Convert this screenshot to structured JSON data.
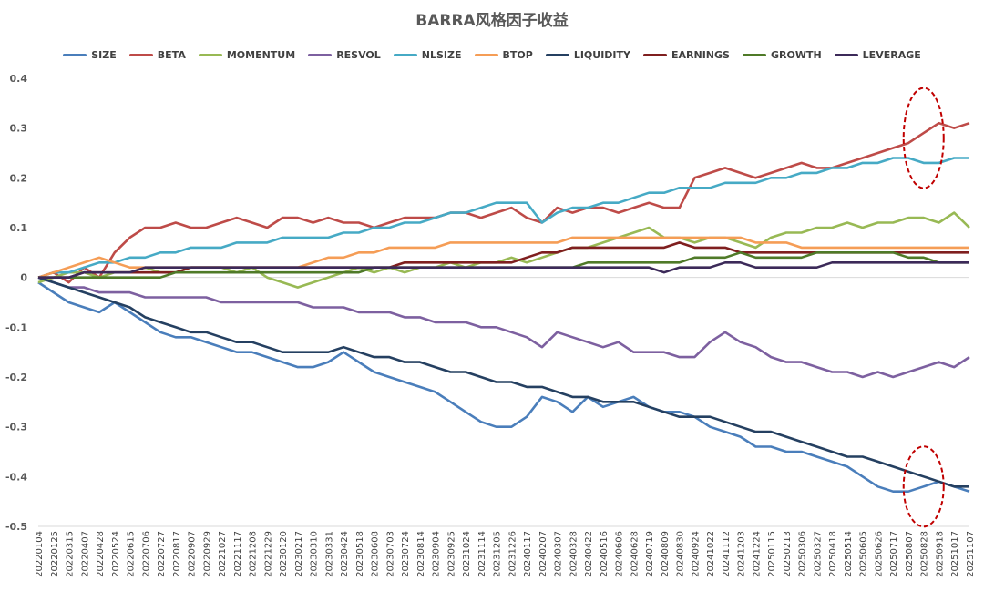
{
  "chart_data": {
    "type": "line",
    "title": "BARRA风格因子收益",
    "xlabel": "",
    "ylabel": "",
    "ylim": [
      -0.5,
      0.4
    ],
    "y_ticks": [
      "0.4",
      "0.3",
      "0.2",
      "0.1",
      "0",
      "-0.1",
      "-0.2",
      "-0.3",
      "-0.4",
      "-0.5"
    ],
    "legend_position": "top",
    "grid": false,
    "x": [
      "20220104",
      "20220125",
      "20220315",
      "20220407",
      "20220428",
      "20220524",
      "20220615",
      "20220706",
      "20220727",
      "20220817",
      "20220907",
      "20220929",
      "20221027",
      "20221117",
      "20221208",
      "20221229",
      "20230120",
      "20230217",
      "20230310",
      "20230331",
      "20230424",
      "20230518",
      "20230608",
      "20230703",
      "20230724",
      "20230814",
      "20230904",
      "20230925",
      "20231024",
      "20231114",
      "20231205",
      "20231226",
      "20240117",
      "20240207",
      "20240307",
      "20240328",
      "20240422",
      "20240516",
      "20240606",
      "20240628",
      "20240719",
      "20240809",
      "20240830",
      "20240924",
      "20241022",
      "20241112",
      "20241203",
      "20241224",
      "20250115",
      "20250213",
      "20250306",
      "20250327",
      "20250418",
      "20250514",
      "20250605",
      "20250626",
      "20250717",
      "20250807",
      "20250828",
      "20250918",
      "20251017",
      "20251107"
    ],
    "series": [
      {
        "name": "SIZE",
        "color": "#4a7ebb",
        "values": [
          -0.01,
          -0.03,
          -0.05,
          -0.06,
          -0.07,
          -0.05,
          -0.07,
          -0.09,
          -0.11,
          -0.12,
          -0.12,
          -0.13,
          -0.14,
          -0.15,
          -0.15,
          -0.16,
          -0.17,
          -0.18,
          -0.18,
          -0.17,
          -0.15,
          -0.17,
          -0.19,
          -0.2,
          -0.21,
          -0.22,
          -0.23,
          -0.25,
          -0.27,
          -0.29,
          -0.3,
          -0.3,
          -0.28,
          -0.24,
          -0.25,
          -0.27,
          -0.24,
          -0.26,
          -0.25,
          -0.24,
          -0.26,
          -0.27,
          -0.27,
          -0.28,
          -0.3,
          -0.31,
          -0.32,
          -0.34,
          -0.34,
          -0.35,
          -0.35,
          -0.36,
          -0.37,
          -0.38,
          -0.4,
          -0.42,
          -0.43,
          -0.43,
          -0.42,
          -0.41,
          -0.42,
          -0.43
        ]
      },
      {
        "name": "BETA",
        "color": "#be4b48",
        "values": [
          0.0,
          0.01,
          -0.01,
          0.02,
          0.0,
          0.05,
          0.08,
          0.1,
          0.1,
          0.11,
          0.1,
          0.1,
          0.11,
          0.12,
          0.11,
          0.1,
          0.12,
          0.12,
          0.11,
          0.12,
          0.11,
          0.11,
          0.1,
          0.11,
          0.12,
          0.12,
          0.12,
          0.13,
          0.13,
          0.12,
          0.13,
          0.14,
          0.12,
          0.11,
          0.14,
          0.13,
          0.14,
          0.14,
          0.13,
          0.14,
          0.15,
          0.14,
          0.14,
          0.2,
          0.21,
          0.22,
          0.21,
          0.2,
          0.21,
          0.22,
          0.23,
          0.22,
          0.22,
          0.23,
          0.24,
          0.25,
          0.26,
          0.27,
          0.29,
          0.31,
          0.3,
          0.31
        ]
      },
      {
        "name": "MOMENTUM",
        "color": "#98b954",
        "values": [
          -0.01,
          0.0,
          0.01,
          0.01,
          0.0,
          0.01,
          0.01,
          0.02,
          0.01,
          0.01,
          0.02,
          0.02,
          0.02,
          0.01,
          0.02,
          0.0,
          -0.01,
          -0.02,
          -0.01,
          0.0,
          0.01,
          0.02,
          0.01,
          0.02,
          0.01,
          0.02,
          0.02,
          0.03,
          0.02,
          0.03,
          0.03,
          0.04,
          0.03,
          0.04,
          0.05,
          0.06,
          0.06,
          0.07,
          0.08,
          0.09,
          0.1,
          0.08,
          0.08,
          0.07,
          0.08,
          0.08,
          0.07,
          0.06,
          0.08,
          0.09,
          0.09,
          0.1,
          0.1,
          0.11,
          0.1,
          0.11,
          0.11,
          0.12,
          0.12,
          0.11,
          0.13,
          0.1
        ]
      },
      {
        "name": "RESVOL",
        "color": "#7d60a0",
        "values": [
          0.0,
          -0.01,
          -0.02,
          -0.02,
          -0.03,
          -0.03,
          -0.03,
          -0.04,
          -0.04,
          -0.04,
          -0.04,
          -0.04,
          -0.05,
          -0.05,
          -0.05,
          -0.05,
          -0.05,
          -0.05,
          -0.06,
          -0.06,
          -0.06,
          -0.07,
          -0.07,
          -0.07,
          -0.08,
          -0.08,
          -0.09,
          -0.09,
          -0.09,
          -0.1,
          -0.1,
          -0.11,
          -0.12,
          -0.14,
          -0.11,
          -0.12,
          -0.13,
          -0.14,
          -0.13,
          -0.15,
          -0.15,
          -0.15,
          -0.16,
          -0.16,
          -0.13,
          -0.11,
          -0.13,
          -0.14,
          -0.16,
          -0.17,
          -0.17,
          -0.18,
          -0.19,
          -0.19,
          -0.2,
          -0.19,
          -0.2,
          -0.19,
          -0.18,
          -0.17,
          -0.18,
          -0.16
        ]
      },
      {
        "name": "NLSIZE",
        "color": "#46aac5",
        "values": [
          0.0,
          0.01,
          0.01,
          0.02,
          0.03,
          0.03,
          0.04,
          0.04,
          0.05,
          0.05,
          0.06,
          0.06,
          0.06,
          0.07,
          0.07,
          0.07,
          0.08,
          0.08,
          0.08,
          0.08,
          0.09,
          0.09,
          0.1,
          0.1,
          0.11,
          0.11,
          0.12,
          0.13,
          0.13,
          0.14,
          0.15,
          0.15,
          0.15,
          0.11,
          0.13,
          0.14,
          0.14,
          0.15,
          0.15,
          0.16,
          0.17,
          0.17,
          0.18,
          0.18,
          0.18,
          0.19,
          0.19,
          0.19,
          0.2,
          0.2,
          0.21,
          0.21,
          0.22,
          0.22,
          0.23,
          0.23,
          0.24,
          0.24,
          0.23,
          0.23,
          0.24,
          0.24
        ]
      },
      {
        "name": "BTOP",
        "color": "#f59d56",
        "values": [
          0.0,
          0.01,
          0.02,
          0.03,
          0.04,
          0.03,
          0.02,
          0.02,
          0.02,
          0.02,
          0.02,
          0.02,
          0.02,
          0.02,
          0.02,
          0.02,
          0.02,
          0.02,
          0.03,
          0.04,
          0.04,
          0.05,
          0.05,
          0.06,
          0.06,
          0.06,
          0.06,
          0.07,
          0.07,
          0.07,
          0.07,
          0.07,
          0.07,
          0.07,
          0.07,
          0.08,
          0.08,
          0.08,
          0.08,
          0.08,
          0.08,
          0.08,
          0.08,
          0.08,
          0.08,
          0.08,
          0.08,
          0.07,
          0.07,
          0.07,
          0.06,
          0.06,
          0.06,
          0.06,
          0.06,
          0.06,
          0.06,
          0.06,
          0.06,
          0.06,
          0.06,
          0.06
        ]
      },
      {
        "name": "LIQUIDITY",
        "color": "#254061",
        "values": [
          0.0,
          -0.01,
          -0.02,
          -0.03,
          -0.04,
          -0.05,
          -0.06,
          -0.08,
          -0.09,
          -0.1,
          -0.11,
          -0.11,
          -0.12,
          -0.13,
          -0.13,
          -0.14,
          -0.15,
          -0.15,
          -0.15,
          -0.15,
          -0.14,
          -0.15,
          -0.16,
          -0.16,
          -0.17,
          -0.17,
          -0.18,
          -0.19,
          -0.19,
          -0.2,
          -0.21,
          -0.21,
          -0.22,
          -0.22,
          -0.23,
          -0.24,
          -0.24,
          -0.25,
          -0.25,
          -0.25,
          -0.26,
          -0.27,
          -0.28,
          -0.28,
          -0.28,
          -0.29,
          -0.3,
          -0.31,
          -0.31,
          -0.32,
          -0.33,
          -0.34,
          -0.35,
          -0.36,
          -0.36,
          -0.37,
          -0.38,
          -0.39,
          -0.4,
          -0.41,
          -0.42,
          -0.42
        ]
      },
      {
        "name": "EARNINGS",
        "color": "#7f1f1f",
        "values": [
          0.0,
          0.0,
          0.0,
          0.01,
          0.01,
          0.01,
          0.01,
          0.01,
          0.01,
          0.01,
          0.02,
          0.02,
          0.02,
          0.02,
          0.02,
          0.02,
          0.02,
          0.02,
          0.02,
          0.02,
          0.02,
          0.02,
          0.02,
          0.02,
          0.03,
          0.03,
          0.03,
          0.03,
          0.03,
          0.03,
          0.03,
          0.03,
          0.04,
          0.05,
          0.05,
          0.06,
          0.06,
          0.06,
          0.06,
          0.06,
          0.06,
          0.06,
          0.07,
          0.06,
          0.06,
          0.06,
          0.05,
          0.05,
          0.05,
          0.05,
          0.05,
          0.05,
          0.05,
          0.05,
          0.05,
          0.05,
          0.05,
          0.05,
          0.05,
          0.05,
          0.05,
          0.05
        ]
      },
      {
        "name": "GROWTH",
        "color": "#4f7a28",
        "values": [
          0.0,
          0.0,
          0.0,
          0.0,
          0.0,
          0.0,
          0.0,
          0.0,
          0.0,
          0.01,
          0.01,
          0.01,
          0.01,
          0.01,
          0.01,
          0.01,
          0.01,
          0.01,
          0.01,
          0.01,
          0.01,
          0.01,
          0.02,
          0.02,
          0.02,
          0.02,
          0.02,
          0.02,
          0.02,
          0.02,
          0.02,
          0.02,
          0.02,
          0.02,
          0.02,
          0.02,
          0.03,
          0.03,
          0.03,
          0.03,
          0.03,
          0.03,
          0.03,
          0.04,
          0.04,
          0.04,
          0.05,
          0.04,
          0.04,
          0.04,
          0.04,
          0.05,
          0.05,
          0.05,
          0.05,
          0.05,
          0.05,
          0.04,
          0.04,
          0.03,
          0.03,
          0.03
        ]
      },
      {
        "name": "LEVERAGE",
        "color": "#3c2a59",
        "values": [
          0.0,
          0.0,
          0.0,
          0.01,
          0.01,
          0.01,
          0.01,
          0.02,
          0.02,
          0.02,
          0.02,
          0.02,
          0.02,
          0.02,
          0.02,
          0.02,
          0.02,
          0.02,
          0.02,
          0.02,
          0.02,
          0.02,
          0.02,
          0.02,
          0.02,
          0.02,
          0.02,
          0.02,
          0.02,
          0.02,
          0.02,
          0.02,
          0.02,
          0.02,
          0.02,
          0.02,
          0.02,
          0.02,
          0.02,
          0.02,
          0.02,
          0.01,
          0.02,
          0.02,
          0.02,
          0.03,
          0.03,
          0.02,
          0.02,
          0.02,
          0.02,
          0.02,
          0.03,
          0.03,
          0.03,
          0.03,
          0.03,
          0.03,
          0.03,
          0.03,
          0.03,
          0.03
        ]
      }
    ],
    "annotations": [
      {
        "shape": "dashed-ellipse",
        "color": "#c00000",
        "x_label": "20250828",
        "y": 0.28
      },
      {
        "shape": "dashed-ellipse",
        "color": "#c00000",
        "x_label": "20250828",
        "y": -0.42
      }
    ]
  }
}
